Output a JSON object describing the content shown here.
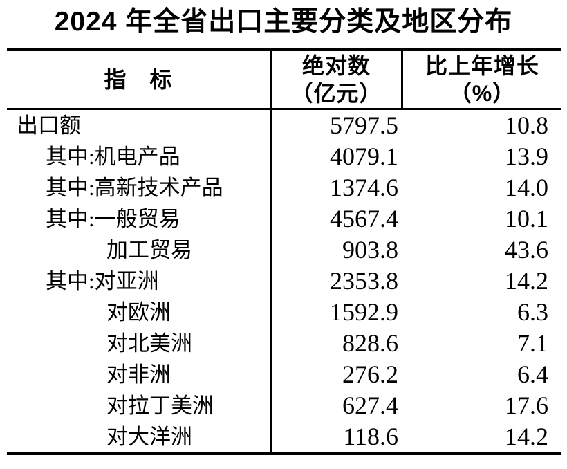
{
  "title": "2024 年全省出口主要分类及地区分布",
  "colors": {
    "text": "#000000",
    "background": "#ffffff",
    "border": "#000000"
  },
  "table": {
    "header": {
      "indicator": "指　标",
      "absolute_line1": "绝对数",
      "absolute_line2": "（亿元）",
      "growth_line1": "比上年增长",
      "growth_line2": "（%）"
    },
    "rows": [
      {
        "label": "出口额",
        "indent": 0,
        "absolute": "5797.5",
        "growth": "10.8"
      },
      {
        "label": "其中:机电产品",
        "indent": 1,
        "absolute": "4079.1",
        "growth": "13.9"
      },
      {
        "label": "其中:高新技术产品",
        "indent": 1,
        "absolute": "1374.6",
        "growth": "14.0"
      },
      {
        "label": "其中:一般贸易",
        "indent": 1,
        "absolute": "4567.4",
        "growth": "10.1"
      },
      {
        "label": "加工贸易",
        "indent": 2,
        "absolute": "903.8",
        "growth": "43.6"
      },
      {
        "label": "其中:对亚洲",
        "indent": 1,
        "absolute": "2353.8",
        "growth": "14.2"
      },
      {
        "label": "对欧洲",
        "indent": 2,
        "absolute": "1592.9",
        "growth": "6.3"
      },
      {
        "label": "对北美洲",
        "indent": 2,
        "absolute": "828.6",
        "growth": "7.1"
      },
      {
        "label": "对非洲",
        "indent": 2,
        "absolute": "276.2",
        "growth": "6.4"
      },
      {
        "label": "对拉丁美洲",
        "indent": 2,
        "absolute": "627.4",
        "growth": "17.6"
      },
      {
        "label": "对大洋洲",
        "indent": 2,
        "absolute": "118.6",
        "growth": "14.2"
      }
    ]
  },
  "chart_data": {
    "type": "table",
    "title": "2024 年全省出口主要分类及地区分布",
    "columns": [
      "指标",
      "绝对数（亿元）",
      "比上年增长（%）"
    ],
    "rows": [
      [
        "出口额",
        5797.5,
        10.8
      ],
      [
        "其中:机电产品",
        4079.1,
        13.9
      ],
      [
        "其中:高新技术产品",
        1374.6,
        14.0
      ],
      [
        "其中:一般贸易",
        4567.4,
        10.1
      ],
      [
        "加工贸易",
        903.8,
        43.6
      ],
      [
        "其中:对亚洲",
        2353.8,
        14.2
      ],
      [
        "对欧洲",
        1592.9,
        6.3
      ],
      [
        "对北美洲",
        828.6,
        7.1
      ],
      [
        "对非洲",
        276.2,
        6.4
      ],
      [
        "对拉丁美洲",
        627.4,
        17.6
      ],
      [
        "对大洋洲",
        118.6,
        14.2
      ]
    ]
  }
}
